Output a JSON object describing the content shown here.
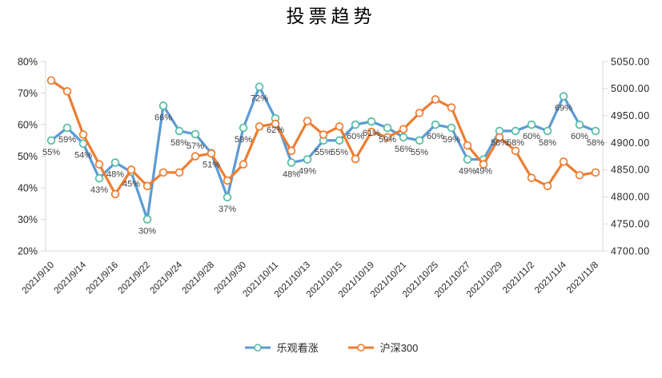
{
  "title": "投票趋势",
  "colors": {
    "background": "#FFFFFF",
    "axis_line": "#D9D9D9",
    "tick_label": "#262626",
    "x_label": "#262626",
    "data_label": "#404040",
    "blue_line": "#5B9BD5",
    "blue_marker_outline": "#54BCA2",
    "orange_line": "#ED7D31",
    "orange_marker_outline": "#ED7D31",
    "marker_fill": "#FFFFFF"
  },
  "legend": {
    "position": "bottom",
    "items_from_series": true
  },
  "chart_data": {
    "type": "line",
    "title": "投票趋势",
    "grid": false,
    "legend_position": "bottom",
    "x_labels": [
      "2021/9/10",
      "",
      "2021/9/14",
      "",
      "2021/9/16",
      "",
      "2021/9/22",
      "",
      "2021/9/24",
      "",
      "2021/9/28",
      "",
      "2021/9/30",
      "",
      "2021/10/11",
      "",
      "2021/10/13",
      "",
      "2021/10/15",
      "",
      "2021/10/19",
      "",
      "2021/10/21",
      "",
      "2021/10/25",
      "",
      "2021/10/27",
      "",
      "2021/10/29",
      "",
      "2021/11/2",
      "",
      "2021/11/4",
      "",
      "2021/11/8"
    ],
    "left_axis": {
      "min": 20,
      "max": 80,
      "format": "percent",
      "ticks": [
        "80%",
        "70%",
        "60%",
        "50%",
        "40%",
        "30%",
        "20%"
      ]
    },
    "right_axis": {
      "min": 4700,
      "max": 5050,
      "ticks": [
        "5050.00",
        "5000.00",
        "4950.00",
        "4900.00",
        "4850.00",
        "4800.00",
        "4750.00",
        "4700.00"
      ]
    },
    "series": [
      {
        "name": "乐观看涨",
        "id": "optimistic",
        "axis": "left",
        "unit": "%",
        "line_color": "#5B9BD5",
        "marker_color": "#54BCA2",
        "show_data_labels": true,
        "values": [
          55,
          59,
          54,
          43,
          48,
          45,
          30,
          66,
          58,
          57,
          51,
          37,
          59,
          72,
          62,
          48,
          49,
          55,
          55,
          60,
          61,
          59,
          56,
          55,
          60,
          59,
          49,
          49,
          58,
          58,
          60,
          58,
          69,
          60,
          58
        ]
      },
      {
        "name": "沪深300",
        "id": "hs300",
        "axis": "right",
        "unit": "",
        "line_color": "#ED7D31",
        "marker_color": "#ED7D31",
        "show_data_labels": false,
        "values": [
          5015,
          4995,
          4915,
          4860,
          4805,
          4850,
          4820,
          4845,
          4845,
          4875,
          4880,
          4830,
          4860,
          4930,
          4935,
          4885,
          4940,
          4915,
          4930,
          4870,
          4920,
          4910,
          4925,
          4955,
          4980,
          4965,
          4895,
          4860,
          4910,
          4885,
          4835,
          4820,
          4865,
          4840,
          4845
        ]
      }
    ]
  }
}
